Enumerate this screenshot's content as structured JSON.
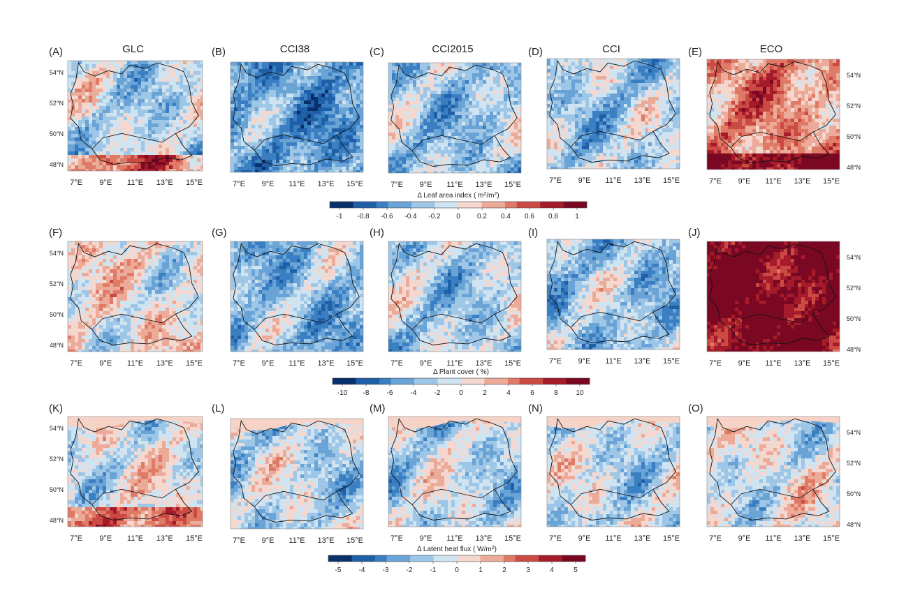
{
  "figure": {
    "columns": [
      "GLC",
      "CCI38",
      "CCI2015",
      "CCI",
      "ECO"
    ],
    "lat_ticks": [
      "54°N",
      "52°N",
      "50°N",
      "48°N"
    ],
    "lon_ticks": [
      "7°E",
      "9°E",
      "11°E",
      "13°E",
      "15°E"
    ],
    "rows": [
      {
        "panels": [
          "(A)",
          "(B)",
          "(C)",
          "(D)",
          "(E)"
        ],
        "colorbar": {
          "title_prefix": "Δ Leaf area index ( m",
          "title_sup1": "2",
          "title_mid": "/m",
          "title_sup2": "2",
          "title_suffix": ")",
          "ticks": [
            "-1",
            "-0.8",
            "-0.6",
            "-0.4",
            "-0.2",
            "0",
            "0.2",
            "0.4",
            "0.6",
            "0.8",
            "1"
          ]
        }
      },
      {
        "panels": [
          "(F)",
          "(G)",
          "(H)",
          "(I)",
          "(J)"
        ],
        "colorbar": {
          "title_prefix": "Δ Plant cover ( %)",
          "title_sup1": "",
          "title_mid": "",
          "title_sup2": "",
          "title_suffix": "",
          "ticks": [
            "-10",
            "-8",
            "-6",
            "-4",
            "-2",
            "0",
            "2",
            "4",
            "6",
            "8",
            "10"
          ]
        }
      },
      {
        "panels": [
          "(K)",
          "(L)",
          "(M)",
          "(N)",
          "(O)"
        ],
        "colorbar": {
          "title_prefix": "Δ Latent heat flux ( W/m",
          "title_sup1": "2",
          "title_mid": ")",
          "title_sup2": "",
          "title_suffix": "",
          "ticks": [
            "-5",
            "-4",
            "-3",
            "-2",
            "-1",
            "0",
            "1",
            "2",
            "3",
            "4",
            "5"
          ]
        }
      }
    ],
    "colormap": [
      "#08306b",
      "#1f5fa8",
      "#3a7fc2",
      "#6aa3d6",
      "#9ec6e6",
      "#cfe3f1",
      "#f4d7cf",
      "#ecab98",
      "#df7a66",
      "#cc4a44",
      "#a61b2a",
      "#7a0822"
    ],
    "panel_bias": [
      [
        -0.15,
        -0.45,
        -0.25,
        -0.2,
        0.35
      ],
      [
        0.02,
        -0.3,
        -0.2,
        -0.25,
        0.95
      ],
      [
        -0.05,
        -0.15,
        -0.15,
        -0.12,
        -0.05
      ]
    ]
  }
}
